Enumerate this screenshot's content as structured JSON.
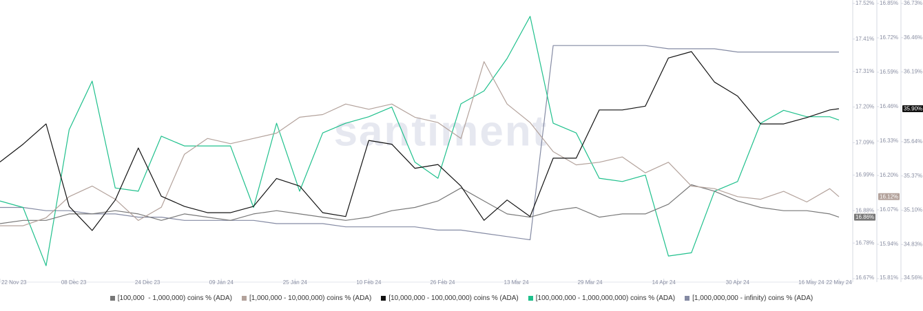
{
  "chart_data": {
    "type": "line",
    "watermark": "santiment",
    "x": [
      "2023-11-22",
      "2023-11-27",
      "2023-12-02",
      "2023-12-07",
      "2023-12-12",
      "2023-12-17",
      "2023-12-22",
      "2023-12-27",
      "2024-01-01",
      "2024-01-06",
      "2024-01-11",
      "2024-01-16",
      "2024-01-21",
      "2024-01-26",
      "2024-01-31",
      "2024-02-05",
      "2024-02-10",
      "2024-02-15",
      "2024-02-20",
      "2024-02-25",
      "2024-03-01",
      "2024-03-06",
      "2024-03-11",
      "2024-03-16",
      "2024-03-21",
      "2024-03-26",
      "2024-03-31",
      "2024-04-05",
      "2024-04-10",
      "2024-04-15",
      "2024-04-20",
      "2024-04-25",
      "2024-04-30",
      "2024-05-05",
      "2024-05-10",
      "2024-05-15",
      "2024-05-20",
      "2024-05-22"
    ],
    "xlim": [
      "2023-11-22",
      "2024-05-22"
    ],
    "xticks": [
      {
        "value": "2023-11-22",
        "label": "22 Nov 23"
      },
      {
        "value": "2023-12-08",
        "label": "08 Dec 23"
      },
      {
        "value": "2023-12-24",
        "label": "24 Dec 23"
      },
      {
        "value": "2024-01-09",
        "label": "09 Jan 24"
      },
      {
        "value": "2024-01-25",
        "label": "25 Jan 24"
      },
      {
        "value": "2024-02-10",
        "label": "10 Feb 24"
      },
      {
        "value": "2024-02-26",
        "label": "26 Feb 24"
      },
      {
        "value": "2024-03-13",
        "label": "13 Mar 24"
      },
      {
        "value": "2024-03-29",
        "label": "29 Mar 24"
      },
      {
        "value": "2024-04-14",
        "label": "14 Apr 24"
      },
      {
        "value": "2024-04-30",
        "label": "30 Apr 24"
      },
      {
        "value": "2024-05-16",
        "label": "16 May 24"
      },
      {
        "value": "2024-05-22",
        "label": "22 May 24"
      }
    ],
    "axes": [
      {
        "ylim": [
          16.67,
          17.52
        ],
        "yticks": [
          {
            "value": 17.52,
            "label": "17.52%"
          },
          {
            "value": 17.41,
            "label": "17.41%"
          },
          {
            "value": 17.31,
            "label": "17.31%"
          },
          {
            "value": 17.2,
            "label": "17.20%"
          },
          {
            "value": 17.09,
            "label": "17.09%"
          },
          {
            "value": 16.99,
            "label": "16.99%"
          },
          {
            "value": 16.88,
            "label": "16.88%"
          },
          {
            "value": 16.78,
            "label": "16.78%"
          },
          {
            "value": 16.67,
            "label": "16.67%"
          }
        ]
      },
      {
        "ylim": [
          15.81,
          16.85
        ],
        "yticks": [
          {
            "value": 16.85,
            "label": "16.85%"
          },
          {
            "value": 16.72,
            "label": "16.72%"
          },
          {
            "value": 16.59,
            "label": "16.59%"
          },
          {
            "value": 16.46,
            "label": "16.46%"
          },
          {
            "value": 16.33,
            "label": "16.33%"
          },
          {
            "value": 16.2,
            "label": "16.20%"
          },
          {
            "value": 16.07,
            "label": "16.07%"
          },
          {
            "value": 15.94,
            "label": "15.94%"
          },
          {
            "value": 15.81,
            "label": "15.81%"
          }
        ]
      },
      {
        "ylim": [
          34.56,
          36.73
        ],
        "yticks": [
          {
            "value": 36.73,
            "label": "36.73%"
          },
          {
            "value": 36.46,
            "label": "36.46%"
          },
          {
            "value": 36.19,
            "label": "36.19%"
          },
          {
            "value": 35.64,
            "label": "35.64%"
          },
          {
            "value": 35.37,
            "label": "35.37%"
          },
          {
            "value": 35.1,
            "label": "35.10%"
          },
          {
            "value": 34.83,
            "label": "34.83%"
          },
          {
            "value": 34.56,
            "label": "34.56%"
          }
        ]
      }
    ],
    "legend": "bottom",
    "series": [
      {
        "name": "[100,000  - 1,000,000) coins % (ADA)",
        "color": "#777777",
        "axis": 0,
        "end_label": "16.86%",
        "values": [
          16.84,
          16.85,
          16.85,
          16.87,
          16.87,
          16.88,
          16.87,
          16.85,
          16.87,
          16.86,
          16.85,
          16.87,
          16.88,
          16.87,
          16.86,
          16.85,
          16.86,
          16.88,
          16.89,
          16.91,
          16.95,
          16.91,
          16.87,
          16.86,
          16.88,
          16.89,
          16.86,
          16.87,
          16.87,
          16.9,
          16.96,
          16.94,
          16.91,
          16.89,
          16.88,
          16.88,
          16.87,
          16.86
        ]
      },
      {
        "name": "[1,000,000 - 10,000,000) coins % (ADA)",
        "color": "#b3a29b",
        "axis": 1,
        "end_label": "16.12%",
        "values": [
          16.01,
          16.01,
          16.04,
          16.12,
          16.16,
          16.11,
          16.03,
          16.08,
          16.28,
          16.34,
          16.32,
          16.34,
          16.36,
          16.42,
          16.43,
          16.47,
          16.45,
          16.47,
          16.42,
          16.4,
          16.34,
          16.63,
          16.47,
          16.4,
          16.29,
          16.24,
          16.25,
          16.27,
          16.21,
          16.25,
          16.16,
          16.15,
          16.12,
          16.11,
          16.14,
          16.1,
          16.15,
          16.12
        ]
      },
      {
        "name": "[10,000,000 - 100,000,000) coins % (ADA)",
        "color": "#111111",
        "axis": 2,
        "end_label": "35.90%",
        "values": [
          35.48,
          35.62,
          35.78,
          35.13,
          34.94,
          35.18,
          35.59,
          35.21,
          35.13,
          35.08,
          35.08,
          35.13,
          35.35,
          35.29,
          35.08,
          35.05,
          35.65,
          35.62,
          35.43,
          35.46,
          35.29,
          35.02,
          35.18,
          35.05,
          35.51,
          35.51,
          35.89,
          35.89,
          35.92,
          36.3,
          36.35,
          36.11,
          36.0,
          35.78,
          35.78,
          35.83,
          35.89,
          35.9
        ]
      },
      {
        "name": "[100,000,000 - 1,000,000,000) coins % (ADA)",
        "color": "#1fc08c",
        "axis": 0,
        "values": [
          16.91,
          16.89,
          16.71,
          17.13,
          17.28,
          16.95,
          16.94,
          17.11,
          17.08,
          17.08,
          17.08,
          16.89,
          17.15,
          16.94,
          17.12,
          17.15,
          17.17,
          17.2,
          17.03,
          16.98,
          17.21,
          17.25,
          17.35,
          17.48,
          17.15,
          17.12,
          16.98,
          16.97,
          16.99,
          16.74,
          16.75,
          16.94,
          16.97,
          17.15,
          17.19,
          17.17,
          17.17,
          17.16
        ]
      },
      {
        "name": "[1,000,000,000 - infinity) coins % (ADA)",
        "color": "#848aa3",
        "axis": 0,
        "values": [
          16.89,
          16.89,
          16.88,
          16.88,
          16.87,
          16.87,
          16.86,
          16.86,
          16.85,
          16.85,
          16.85,
          16.85,
          16.84,
          16.84,
          16.84,
          16.83,
          16.83,
          16.83,
          16.83,
          16.82,
          16.82,
          16.81,
          16.8,
          16.79,
          17.39,
          17.39,
          17.39,
          17.39,
          17.39,
          17.38,
          17.38,
          17.38,
          17.37,
          17.37,
          17.37,
          17.37,
          17.37,
          17.37
        ]
      }
    ]
  }
}
